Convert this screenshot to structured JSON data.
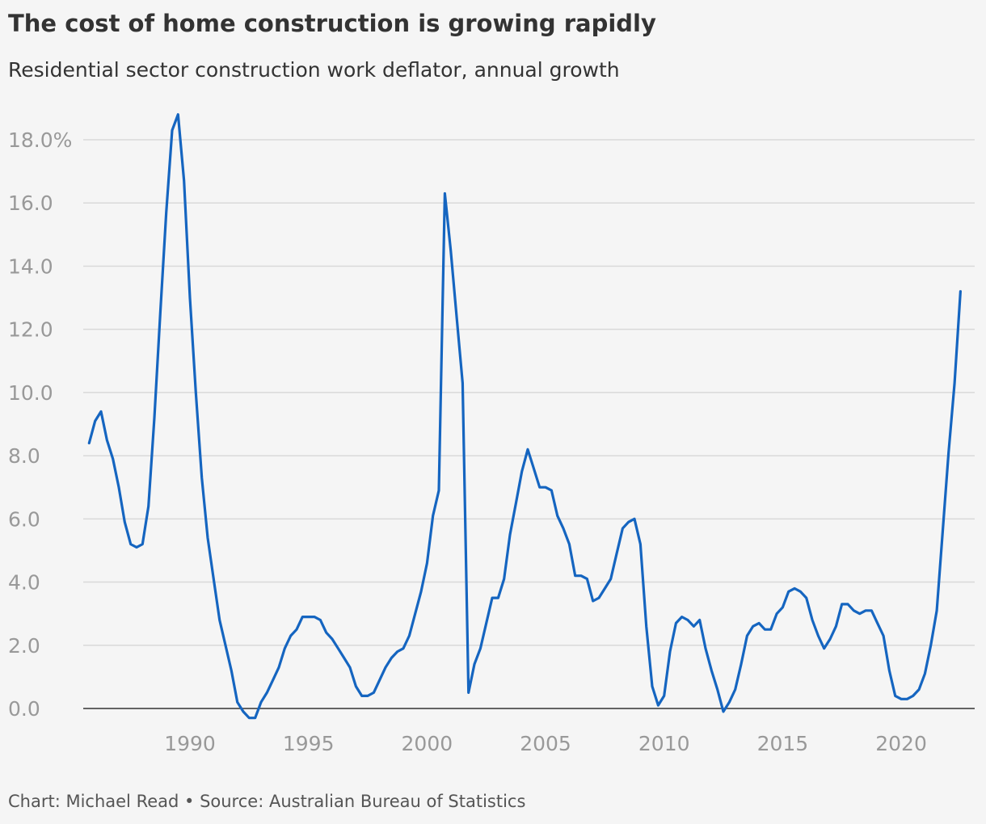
{
  "header": {
    "title": "The cost of home construction is growing rapidly",
    "subtitle": "Residential sector construction work deflator, annual growth"
  },
  "footer": {
    "credit": "Chart: Michael Read • Source: Australian Bureau of Statistics"
  },
  "colors": {
    "line": "#1565c0",
    "grid": "#d9d9d9",
    "axis": "#333333",
    "tick_text": "#999999",
    "background": "#f5f5f5"
  },
  "chart_data": {
    "type": "line",
    "title": "The cost of home construction is growing rapidly",
    "subtitle": "Residential sector construction work deflator, annual growth",
    "xlabel": "",
    "ylabel": "",
    "xlim": [
      1985.5,
      2023.1
    ],
    "ylim": [
      0,
      18
    ],
    "grid": true,
    "y_ticks": [
      0,
      2,
      4,
      6,
      8,
      10,
      12,
      14,
      16,
      18
    ],
    "y_tick_labels": [
      "0.0",
      "2.0",
      "4.0",
      "6.0",
      "8.0",
      "10.0",
      "12.0",
      "14.0",
      "16.0",
      "18.0%"
    ],
    "x_ticks": [
      1990,
      1995,
      2000,
      2005,
      2010,
      2015,
      2020
    ],
    "x_tick_labels": [
      "1990",
      "1995",
      "2000",
      "2005",
      "2010",
      "2015",
      "2020"
    ],
    "series": [
      {
        "x": [
          1985.75,
          1986.0,
          1986.25,
          1986.5,
          1986.75,
          1987.0,
          1987.25,
          1987.5,
          1987.75,
          1988.0,
          1988.25,
          1988.5,
          1988.75,
          1989.0,
          1989.25,
          1989.5,
          1989.75,
          1990.0,
          1990.25,
          1990.5,
          1990.75,
          1991.0,
          1991.25,
          1991.5,
          1991.75,
          1992.0,
          1992.25,
          1992.5,
          1992.75,
          1993.0,
          1993.25,
          1993.5,
          1993.75,
          1994.0,
          1994.25,
          1994.5,
          1994.75,
          1995.0,
          1995.25,
          1995.5,
          1995.75,
          1996.0,
          1996.25,
          1996.5,
          1996.75,
          1997.0,
          1997.25,
          1997.5,
          1997.75,
          1998.0,
          1998.25,
          1998.5,
          1998.75,
          1999.0,
          1999.25,
          1999.5,
          1999.75,
          2000.0,
          2000.25,
          2000.5,
          2000.75,
          2001.0,
          2001.25,
          2001.5,
          2001.75,
          2002.0,
          2002.25,
          2002.5,
          2002.75,
          2003.0,
          2003.25,
          2003.5,
          2003.75,
          2004.0,
          2004.25,
          2004.5,
          2004.75,
          2005.0,
          2005.25,
          2005.5,
          2005.75,
          2006.0,
          2006.25,
          2006.5,
          2006.75,
          2007.0,
          2007.25,
          2007.5,
          2007.75,
          2008.0,
          2008.25,
          2008.5,
          2008.75,
          2009.0,
          2009.25,
          2009.5,
          2009.75,
          2010.0,
          2010.25,
          2010.5,
          2010.75,
          2011.0,
          2011.25,
          2011.5,
          2011.75,
          2012.0,
          2012.25,
          2012.5,
          2012.75,
          2013.0,
          2013.25,
          2013.5,
          2013.75,
          2014.0,
          2014.25,
          2014.5,
          2014.75,
          2015.0,
          2015.25,
          2015.5,
          2015.75,
          2016.0,
          2016.25,
          2016.5,
          2016.75,
          2017.0,
          2017.25,
          2017.5,
          2017.75,
          2018.0,
          2018.25,
          2018.5,
          2018.75,
          2019.0,
          2019.25,
          2019.5,
          2019.75,
          2020.0,
          2020.25,
          2020.5,
          2020.75,
          2021.0,
          2021.25,
          2021.5,
          2021.75,
          2022.0,
          2022.25,
          2022.5
        ],
        "values": [
          8.4,
          9.1,
          9.4,
          8.5,
          7.9,
          7.0,
          5.9,
          5.2,
          5.1,
          5.2,
          6.4,
          9.2,
          12.5,
          15.7,
          18.3,
          18.8,
          16.7,
          13.0,
          10.0,
          7.3,
          5.4,
          4.1,
          2.8,
          2.0,
          1.2,
          0.2,
          -0.1,
          -0.3,
          -0.3,
          0.2,
          0.5,
          0.9,
          1.3,
          1.9,
          2.3,
          2.5,
          2.9,
          2.9,
          2.9,
          2.8,
          2.4,
          2.2,
          1.9,
          1.6,
          1.3,
          0.7,
          0.4,
          0.4,
          0.5,
          0.9,
          1.3,
          1.6,
          1.8,
          1.9,
          2.3,
          3.0,
          3.7,
          4.6,
          6.1,
          6.9,
          16.3,
          14.5,
          12.4,
          10.3,
          0.5,
          1.4,
          1.9,
          2.7,
          3.5,
          3.5,
          4.1,
          5.5,
          6.5,
          7.5,
          8.2,
          7.6,
          7.0,
          7.0,
          6.9,
          6.1,
          5.7,
          5.2,
          4.2,
          4.2,
          4.1,
          3.4,
          3.5,
          3.8,
          4.1,
          4.9,
          5.7,
          5.9,
          6.0,
          5.2,
          2.6,
          0.7,
          0.1,
          0.4,
          1.8,
          2.7,
          2.9,
          2.8,
          2.6,
          2.8,
          1.9,
          1.2,
          0.6,
          -0.1,
          0.2,
          0.6,
          1.4,
          2.3,
          2.6,
          2.7,
          2.5,
          2.5,
          3.0,
          3.2,
          3.7,
          3.8,
          3.7,
          3.5,
          2.8,
          2.3,
          1.9,
          2.2,
          2.6,
          3.3,
          3.3,
          3.1,
          3.0,
          3.1,
          3.1,
          2.7,
          2.3,
          1.2,
          0.4,
          0.3,
          0.3,
          0.4,
          0.6,
          1.1,
          2.0,
          3.1,
          5.6,
          8.1,
          10.3,
          13.2
        ]
      }
    ]
  }
}
